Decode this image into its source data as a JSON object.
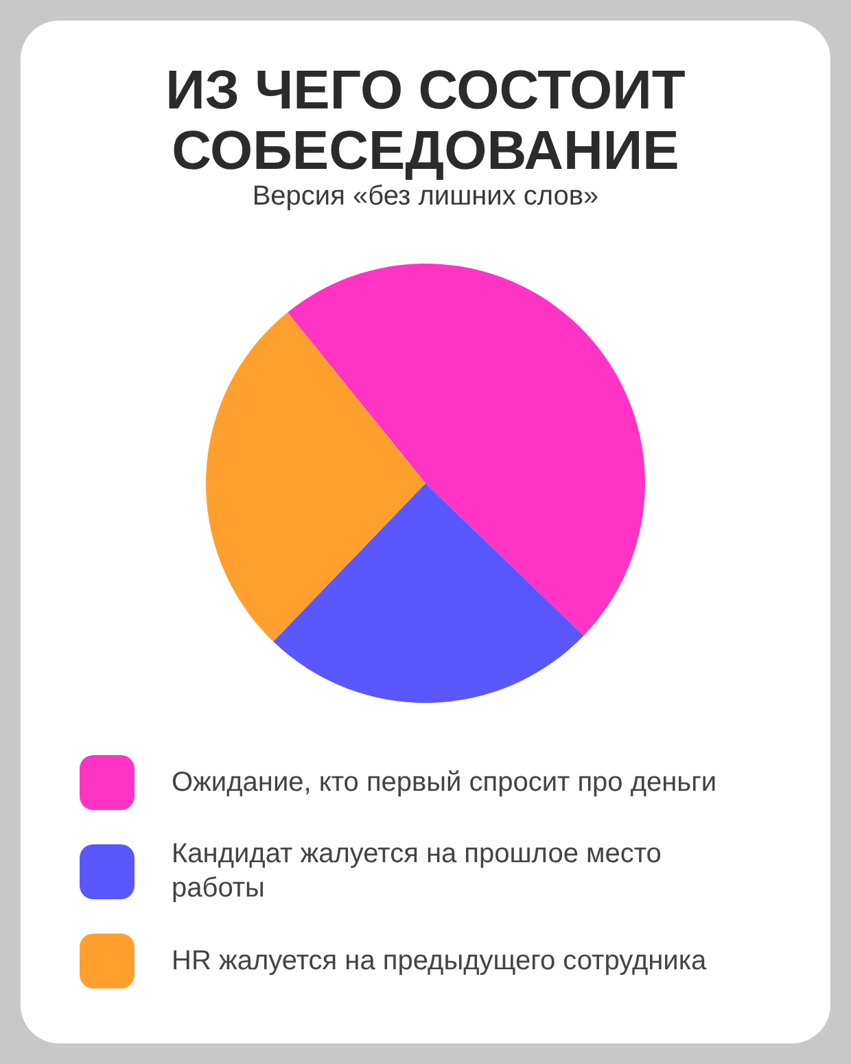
{
  "chart_data": {
    "type": "pie",
    "title": "ИЗ ЧЕГО СОСТОИТ СОБЕСЕДОВАНИЕ",
    "subtitle": "Версия «без лишних слов»",
    "categories": [
      "Ожидание, кто первый спросит про деньги",
      "Кандидат жалуется на прошлое место работы",
      "HR жалуется на предыдущего сотрудника"
    ],
    "values": [
      48,
      25,
      27
    ],
    "colors": [
      "#ff33c4",
      "#5b57ff",
      "#ffa02e"
    ],
    "legend": "bottom"
  }
}
